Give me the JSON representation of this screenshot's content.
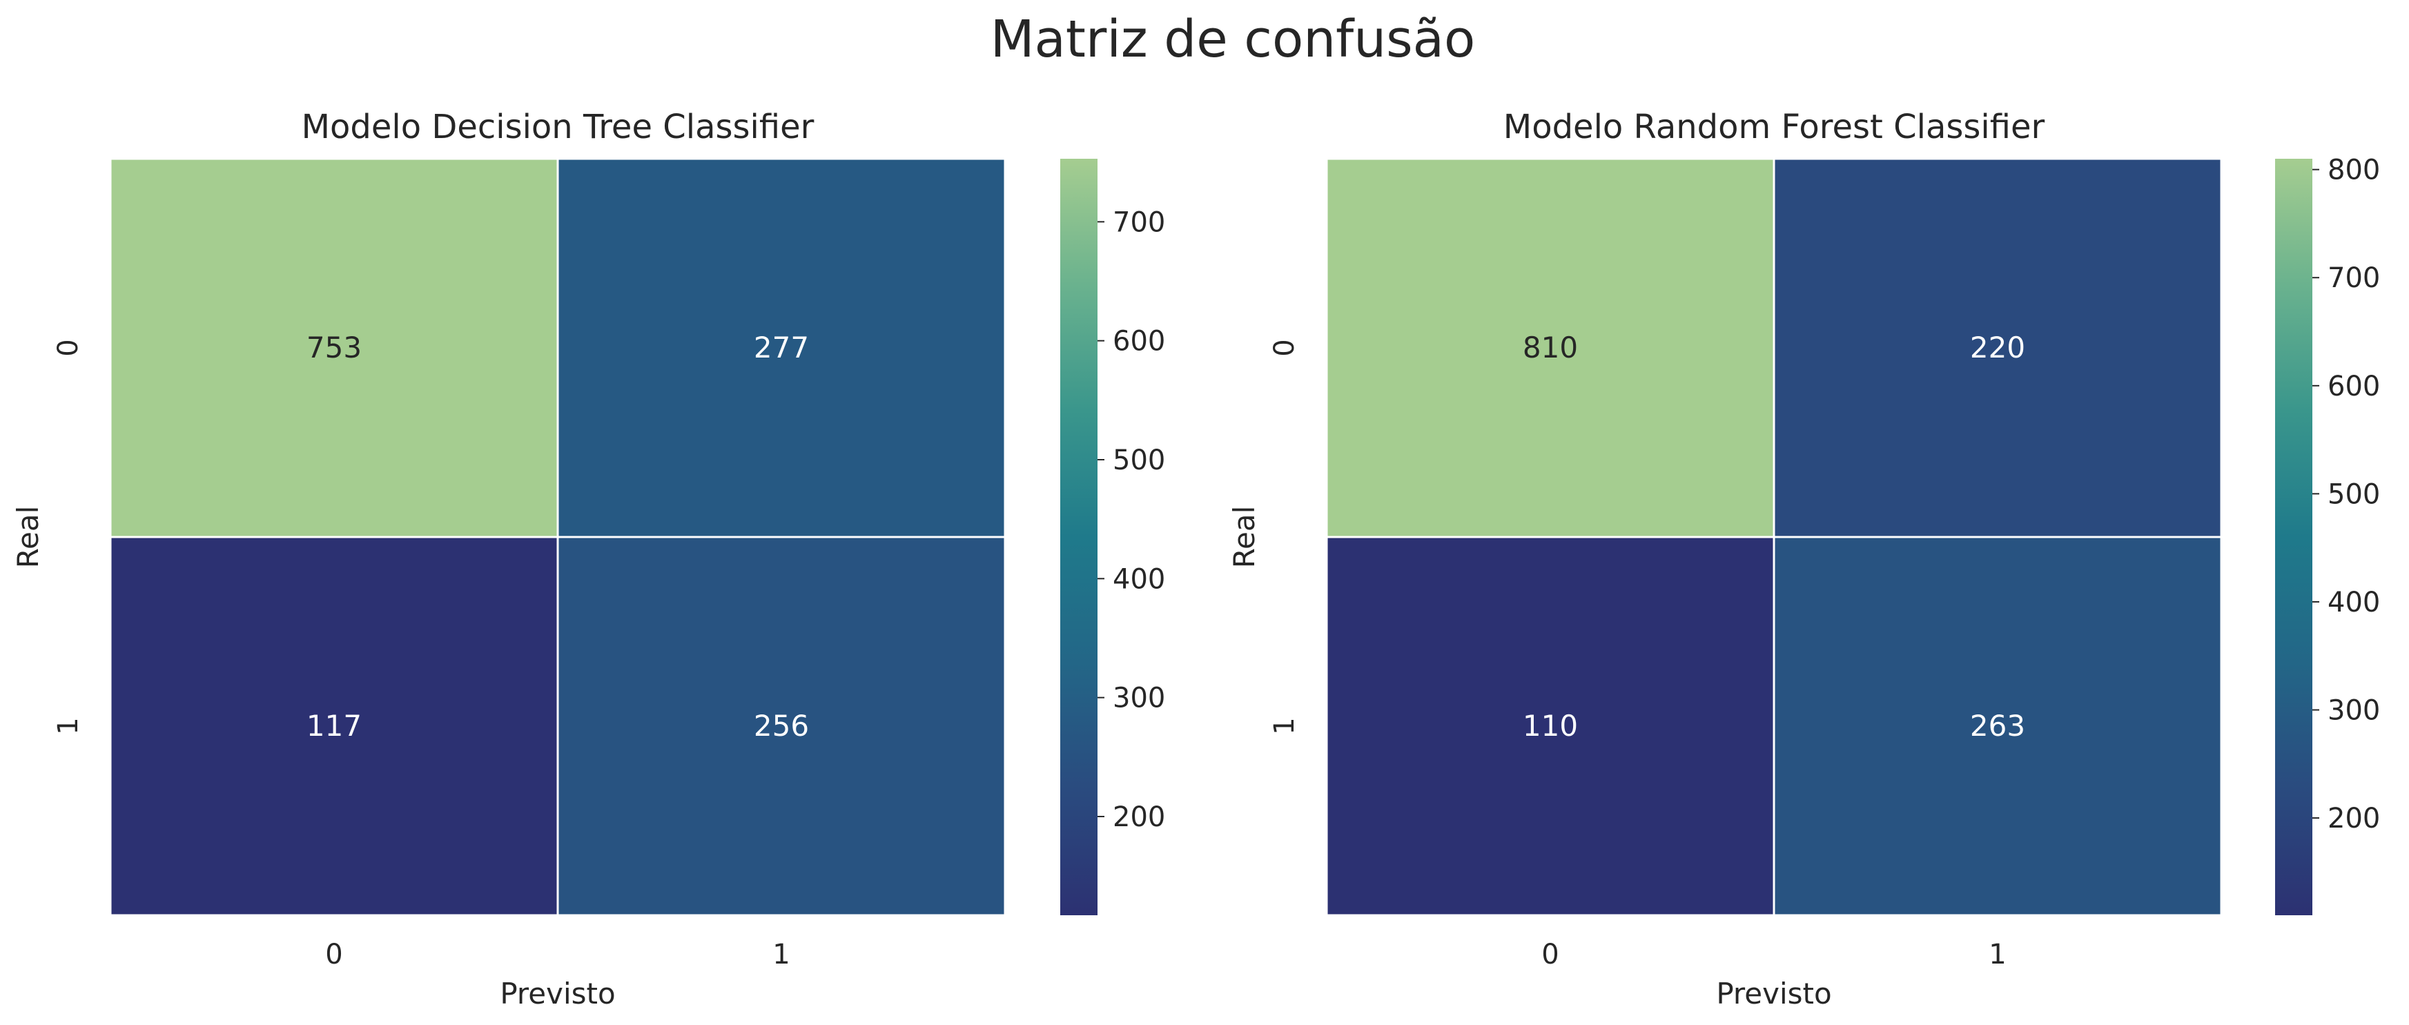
{
  "figure": {
    "title": "Matriz de confusão"
  },
  "chart_data": [
    {
      "type": "heatmap",
      "title": "Modelo Decision Tree Classifier",
      "xlabel": "Previsto",
      "ylabel": "Real",
      "x_categories": [
        "0",
        "1"
      ],
      "y_categories": [
        "0",
        "1"
      ],
      "values": [
        [
          753,
          277
        ],
        [
          117,
          256
        ]
      ],
      "colormap": "crest",
      "colorbar": {
        "range": [
          117,
          753
        ],
        "ticks": [
          200,
          300,
          400,
          500,
          600,
          700
        ]
      },
      "grid": false
    },
    {
      "type": "heatmap",
      "title": "Modelo Random Forest Classifier",
      "xlabel": "Previsto",
      "ylabel": "Real",
      "x_categories": [
        "0",
        "1"
      ],
      "y_categories": [
        "0",
        "1"
      ],
      "values": [
        [
          810,
          220
        ],
        [
          110,
          263
        ]
      ],
      "colormap": "crest",
      "colorbar": {
        "range": [
          110,
          810
        ],
        "ticks": [
          200,
          300,
          400,
          500,
          600,
          700,
          800
        ]
      },
      "grid": false
    }
  ],
  "colors": {
    "colormap_stops": [
      "#2c3172",
      "#2a4b7f",
      "#236687",
      "#1f7a8b",
      "#3a968c",
      "#6ab28e",
      "#a5cd90"
    ],
    "cell_border": "#ffffff",
    "text_dark": "#262626",
    "text_light": "#ffffff"
  }
}
